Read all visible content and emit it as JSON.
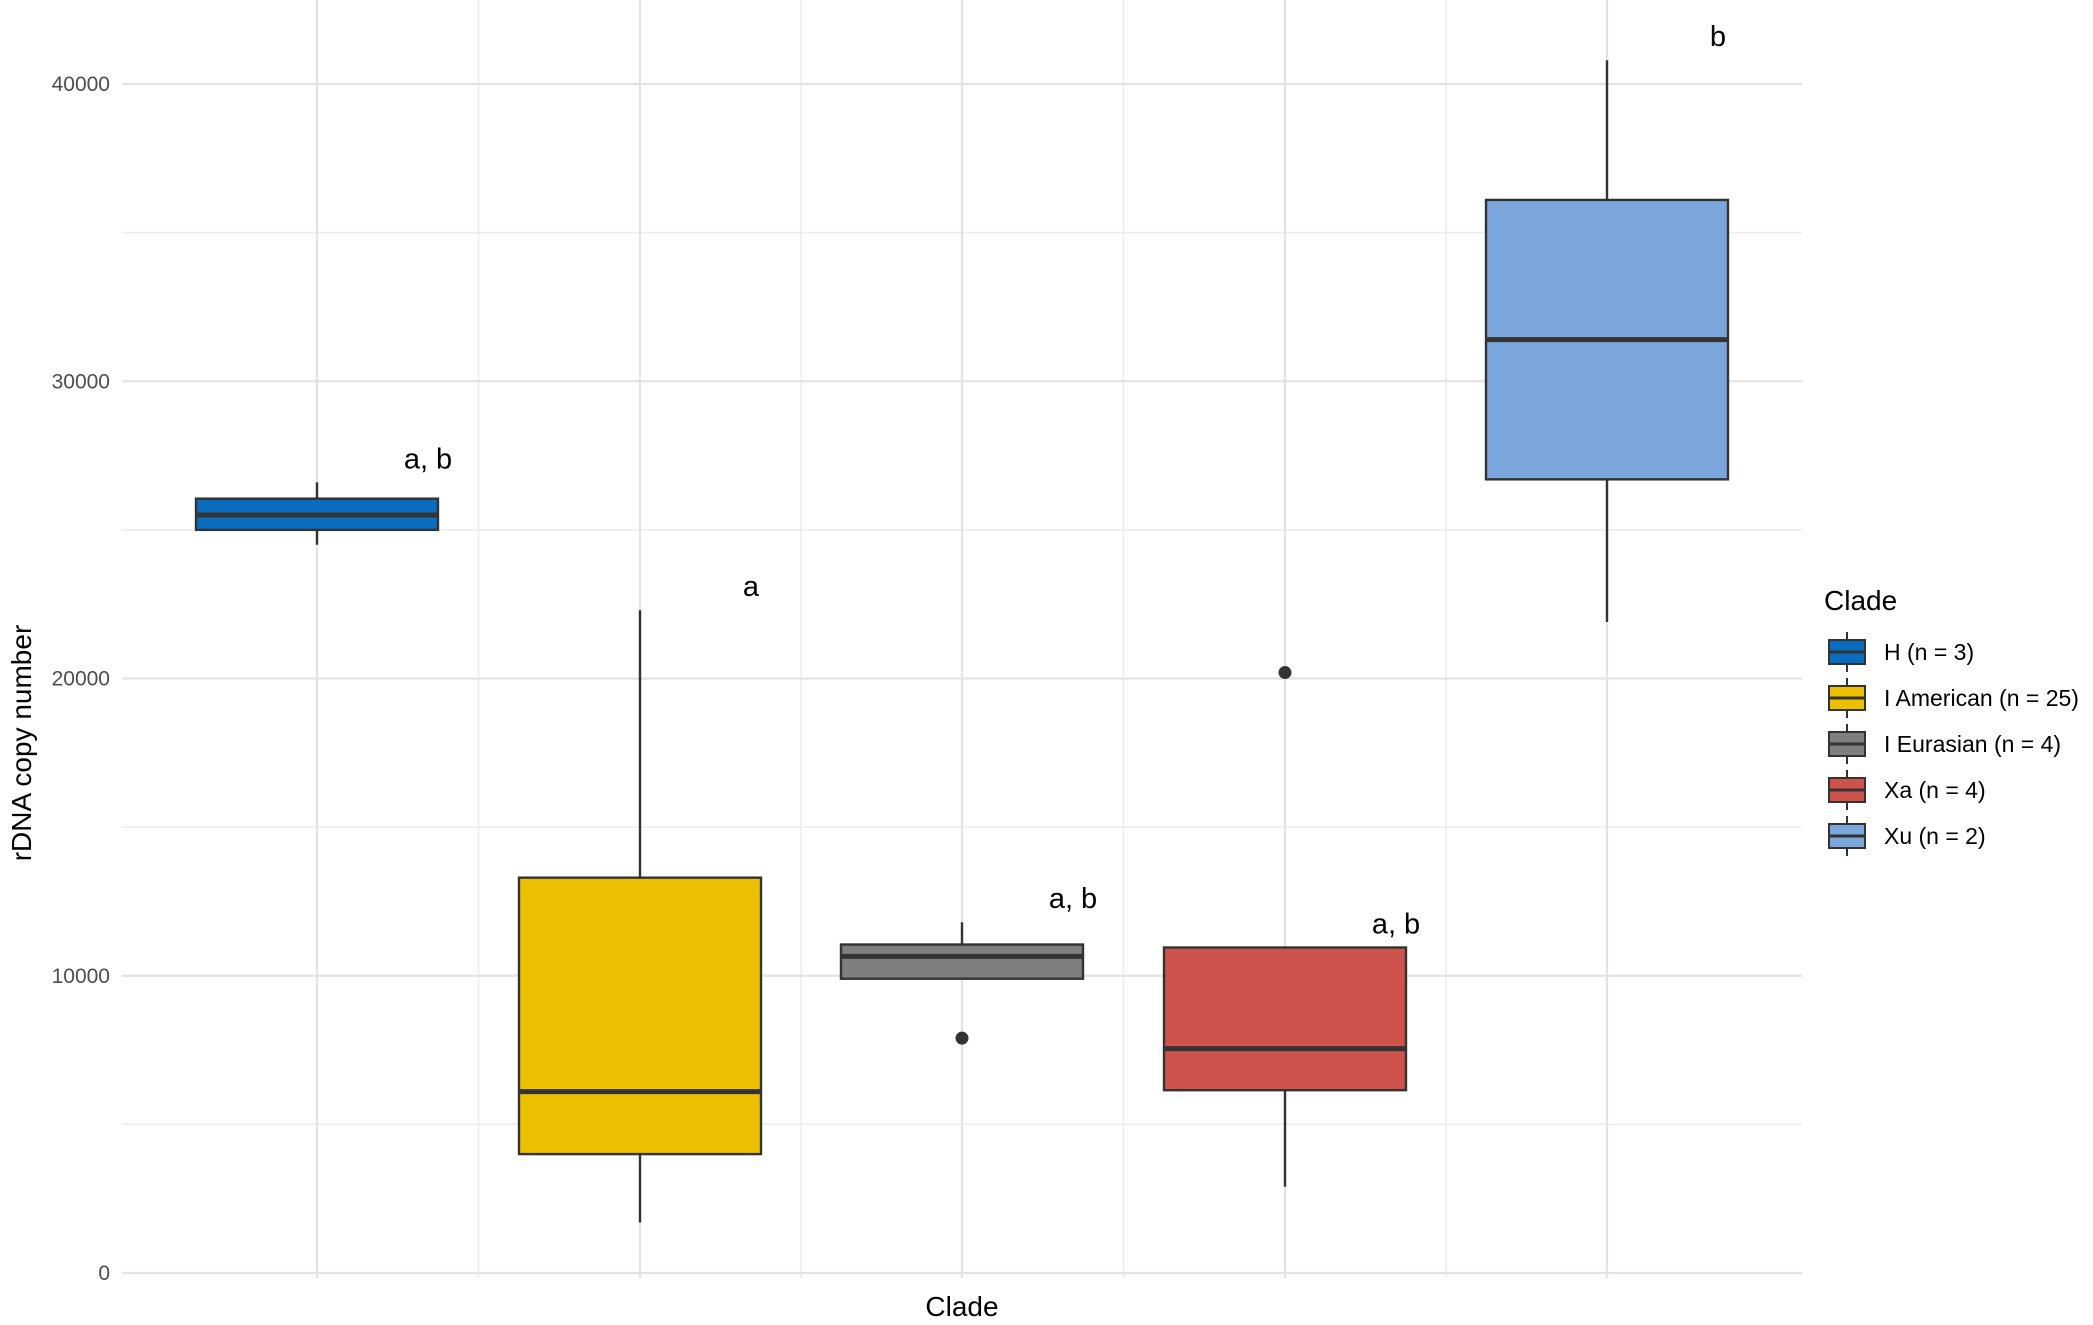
{
  "chart_data": {
    "type": "box",
    "xlabel": "Clade",
    "ylabel": "rDNA copy number",
    "ylim": [
      0,
      41000
    ],
    "yticks": [
      "0",
      "10000",
      "20000",
      "30000",
      "40000"
    ],
    "grid": true,
    "legend": {
      "title": "Clade",
      "placement": "right",
      "entries": [
        "H (n = 3)",
        "I American (n = 25)",
        "I Eurasian  (n = 4)",
        "Xa (n = 4)",
        "Xu (n = 2)"
      ]
    },
    "series": [
      {
        "legend_label": "H (n = 3)",
        "color": "#0a6cbf",
        "whisker_low": 24500,
        "q1": 25000,
        "median": 25500,
        "q3": 26050,
        "whisker_high": 26600,
        "outliers": [],
        "letter": "a, b"
      },
      {
        "legend_label": "I American (n = 25)",
        "color": "#ecc000",
        "whisker_low": 1700,
        "q1": 4000,
        "median": 6100,
        "q3": 13300,
        "whisker_high": 22300,
        "outliers": [],
        "letter": "a"
      },
      {
        "legend_label": "I Eurasian  (n = 4)",
        "color": "#7f7f7f",
        "whisker_low": 9900,
        "q1": 9900,
        "median": 10650,
        "q3": 11050,
        "whisker_high": 11800,
        "outliers": [
          7900
        ],
        "letter": "a, b"
      },
      {
        "legend_label": "Xa (n = 4)",
        "color": "#cd534c",
        "whisker_low": 2900,
        "q1": 6150,
        "median": 7550,
        "q3": 10950,
        "whisker_high": 10950,
        "outliers": [
          20200
        ],
        "letter": "a, b"
      },
      {
        "legend_label": "Xu (n = 2)",
        "color": "#7aa6dc",
        "whisker_low": 21900,
        "q1": 26700,
        "median": 31400,
        "q3": 36100,
        "whisker_high": 40800,
        "outliers": [],
        "letter": "b"
      }
    ]
  }
}
